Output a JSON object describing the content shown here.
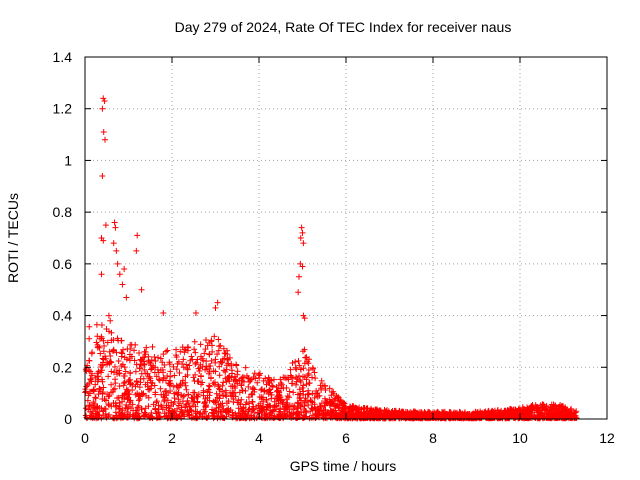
{
  "chart_data": {
    "type": "scatter",
    "title": "Day 279 of 2024, Rate Of TEC Index for receiver naus",
    "xlabel": "GPS time / hours",
    "ylabel": "ROTI / TECUs",
    "xlim": [
      0,
      12
    ],
    "ylim": [
      0,
      1.4
    ],
    "xticks": [
      "0",
      "2",
      "4",
      "6",
      "8",
      "10",
      "12"
    ],
    "yticks": [
      "0",
      "0.2",
      "0.4",
      "0.6",
      "0.8",
      "1",
      "1.2",
      "1.4"
    ],
    "grid": true,
    "marker": "+",
    "color": "#ff0000",
    "outliers": [
      {
        "x": 0.42,
        "y": 1.24
      },
      {
        "x": 0.45,
        "y": 1.23
      },
      {
        "x": 0.4,
        "y": 1.2
      },
      {
        "x": 0.43,
        "y": 1.11
      },
      {
        "x": 0.46,
        "y": 1.08
      },
      {
        "x": 0.4,
        "y": 0.94
      },
      {
        "x": 0.48,
        "y": 0.75
      },
      {
        "x": 0.68,
        "y": 0.76
      },
      {
        "x": 0.7,
        "y": 0.74
      },
      {
        "x": 0.38,
        "y": 0.7
      },
      {
        "x": 0.42,
        "y": 0.69
      },
      {
        "x": 0.66,
        "y": 0.68
      },
      {
        "x": 0.72,
        "y": 0.65
      },
      {
        "x": 1.2,
        "y": 0.71
      },
      {
        "x": 1.18,
        "y": 0.65
      },
      {
        "x": 0.38,
        "y": 0.56
      },
      {
        "x": 0.75,
        "y": 0.6
      },
      {
        "x": 0.8,
        "y": 0.56
      },
      {
        "x": 0.9,
        "y": 0.58
      },
      {
        "x": 0.86,
        "y": 0.52
      },
      {
        "x": 0.95,
        "y": 0.47
      },
      {
        "x": 1.3,
        "y": 0.5
      },
      {
        "x": 4.98,
        "y": 0.74
      },
      {
        "x": 5.0,
        "y": 0.72
      },
      {
        "x": 4.96,
        "y": 0.7
      },
      {
        "x": 5.02,
        "y": 0.68
      },
      {
        "x": 4.95,
        "y": 0.6
      },
      {
        "x": 5.0,
        "y": 0.59
      },
      {
        "x": 4.92,
        "y": 0.55
      },
      {
        "x": 4.9,
        "y": 0.49
      },
      {
        "x": 5.02,
        "y": 0.4
      },
      {
        "x": 5.05,
        "y": 0.39
      },
      {
        "x": 1.8,
        "y": 0.41
      },
      {
        "x": 2.55,
        "y": 0.41
      },
      {
        "x": 3.05,
        "y": 0.45
      },
      {
        "x": 3.0,
        "y": 0.43
      },
      {
        "x": 0.55,
        "y": 0.4
      },
      {
        "x": 0.58,
        "y": 0.38
      }
    ],
    "density_envelope": [
      {
        "x": 0.0,
        "max": 0.4
      },
      {
        "x": 0.5,
        "max": 0.35
      },
      {
        "x": 1.0,
        "max": 0.3
      },
      {
        "x": 1.5,
        "max": 0.28
      },
      {
        "x": 2.0,
        "max": 0.26
      },
      {
        "x": 2.5,
        "max": 0.3
      },
      {
        "x": 3.0,
        "max": 0.32
      },
      {
        "x": 3.5,
        "max": 0.22
      },
      {
        "x": 4.0,
        "max": 0.18
      },
      {
        "x": 4.5,
        "max": 0.15
      },
      {
        "x": 5.0,
        "max": 0.28
      },
      {
        "x": 5.5,
        "max": 0.14
      },
      {
        "x": 6.0,
        "max": 0.05
      },
      {
        "x": 7.0,
        "max": 0.03
      },
      {
        "x": 8.0,
        "max": 0.025
      },
      {
        "x": 9.0,
        "max": 0.025
      },
      {
        "x": 10.0,
        "max": 0.04
      },
      {
        "x": 10.5,
        "max": 0.06
      },
      {
        "x": 11.0,
        "max": 0.05
      },
      {
        "x": 11.3,
        "max": 0.03
      }
    ],
    "x_end": 11.3
  }
}
